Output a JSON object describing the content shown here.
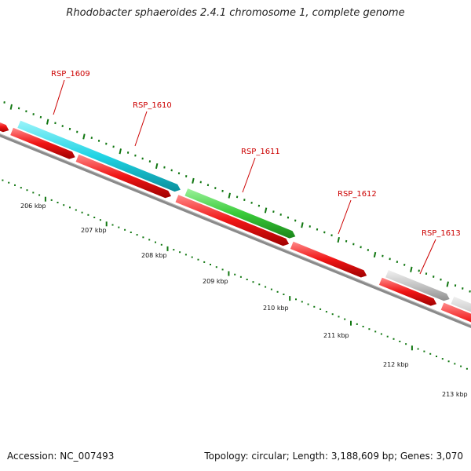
{
  "title": "Rhodobacter sphaeroides 2.4.1 chromosome 1, complete genome",
  "footer": {
    "accession": "Accession: NC_007493",
    "summary": "Topology: circular; Length: 3,188,609 bp; Genes: 3,070"
  },
  "colors": {
    "forward_cds": "#00d0e0",
    "forward_green": "#33cc33",
    "forward_gray": "#cccccc",
    "reverse_cds": "#ee1111",
    "backbone": "#888888",
    "tick": "#117711",
    "label": "#cc0000"
  },
  "forward_genes": [
    {
      "label": "RSP_1609",
      "color": "cyan"
    },
    {
      "label": "RSP_1610",
      "color": "cyan"
    },
    {
      "label": "RSP_1611",
      "color": "green"
    },
    {
      "label": "RSP_1612",
      "color": "gray"
    },
    {
      "label": "RSP_1613",
      "color": "gray"
    }
  ],
  "kbp_labels": [
    "206 kbp",
    "207 kbp",
    "208 kbp",
    "209 kbp",
    "210 kbp",
    "211 kbp",
    "212 kbp",
    "213 kbp"
  ]
}
